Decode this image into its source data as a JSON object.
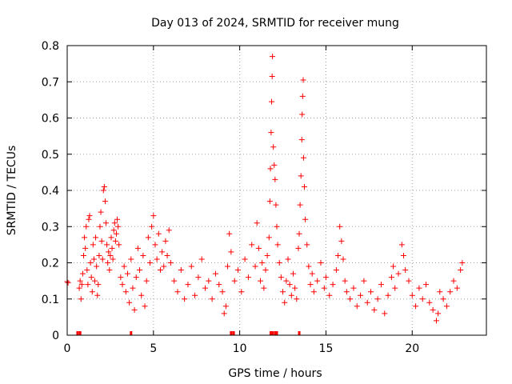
{
  "chart_data": {
    "type": "scatter",
    "title": "Day 013 of 2024, SRMTID for receiver mung",
    "xlabel": "GPS time / hours",
    "ylabel": "SRMTID / TECUs",
    "xlim": [
      0,
      24.3
    ],
    "ylim": [
      0,
      0.8
    ],
    "xticks": [
      0,
      5,
      10,
      15,
      20
    ],
    "xtick_labels": [
      "0",
      "5",
      "10",
      "15",
      "20"
    ],
    "yticks": [
      0,
      0.1,
      0.2,
      0.3,
      0.4,
      0.5,
      0.6,
      0.7,
      0.8
    ],
    "ytick_labels": [
      "0",
      "0.1",
      "0.2",
      "0.3",
      "0.4",
      "0.5",
      "0.6",
      "0.7",
      "0.8"
    ],
    "grid": true,
    "marker": "+",
    "series": [
      {
        "name": "SRMTID",
        "color": "#ff0000",
        "points": [
          [
            0.0,
            0.148
          ],
          [
            0.05,
            0.145
          ],
          [
            0.7,
            0.13
          ],
          [
            0.75,
            0.15
          ],
          [
            0.8,
            0.1
          ],
          [
            0.85,
            0.14
          ],
          [
            0.9,
            0.17
          ],
          [
            0.95,
            0.22
          ],
          [
            1.0,
            0.27
          ],
          [
            1.05,
            0.24
          ],
          [
            1.1,
            0.3
          ],
          [
            1.15,
            0.18
          ],
          [
            1.2,
            0.14
          ],
          [
            1.25,
            0.32
          ],
          [
            1.3,
            0.33
          ],
          [
            1.35,
            0.2
          ],
          [
            1.4,
            0.16
          ],
          [
            1.45,
            0.12
          ],
          [
            1.5,
            0.25
          ],
          [
            1.55,
            0.21
          ],
          [
            1.6,
            0.15
          ],
          [
            1.65,
            0.27
          ],
          [
            1.7,
            0.19
          ],
          [
            1.75,
            0.11
          ],
          [
            1.8,
            0.14
          ],
          [
            1.85,
            0.22
          ],
          [
            1.9,
            0.3
          ],
          [
            1.95,
            0.34
          ],
          [
            2.0,
            0.26
          ],
          [
            2.05,
            0.21
          ],
          [
            2.1,
            0.4
          ],
          [
            2.15,
            0.41
          ],
          [
            2.2,
            0.37
          ],
          [
            2.25,
            0.31
          ],
          [
            2.3,
            0.25
          ],
          [
            2.35,
            0.2
          ],
          [
            2.4,
            0.23
          ],
          [
            2.45,
            0.18
          ],
          [
            2.5,
            0.22
          ],
          [
            2.55,
            0.27
          ],
          [
            2.6,
            0.24
          ],
          [
            2.65,
            0.21
          ],
          [
            2.7,
            0.29
          ],
          [
            2.75,
            0.31
          ],
          [
            2.8,
            0.26
          ],
          [
            2.85,
            0.28
          ],
          [
            2.9,
            0.32
          ],
          [
            2.95,
            0.3
          ],
          [
            3.0,
            0.25
          ],
          [
            3.1,
            0.16
          ],
          [
            3.2,
            0.14
          ],
          [
            3.3,
            0.19
          ],
          [
            3.4,
            0.12
          ],
          [
            3.5,
            0.17
          ],
          [
            3.6,
            0.09
          ],
          [
            3.7,
            0.21
          ],
          [
            3.8,
            0.13
          ],
          [
            3.9,
            0.07
          ],
          [
            4.0,
            0.16
          ],
          [
            4.1,
            0.24
          ],
          [
            4.2,
            0.18
          ],
          [
            4.3,
            0.11
          ],
          [
            4.4,
            0.22
          ],
          [
            4.5,
            0.08
          ],
          [
            4.6,
            0.15
          ],
          [
            4.7,
            0.27
          ],
          [
            4.8,
            0.2
          ],
          [
            4.9,
            0.3
          ],
          [
            5.0,
            0.33
          ],
          [
            5.1,
            0.25
          ],
          [
            5.2,
            0.21
          ],
          [
            5.3,
            0.28
          ],
          [
            5.4,
            0.18
          ],
          [
            5.5,
            0.23
          ],
          [
            5.6,
            0.19
          ],
          [
            5.7,
            0.26
          ],
          [
            5.8,
            0.22
          ],
          [
            5.9,
            0.29
          ],
          [
            6.0,
            0.2
          ],
          [
            6.2,
            0.15
          ],
          [
            6.4,
            0.12
          ],
          [
            6.6,
            0.18
          ],
          [
            6.8,
            0.1
          ],
          [
            7.0,
            0.14
          ],
          [
            7.2,
            0.19
          ],
          [
            7.4,
            0.11
          ],
          [
            7.6,
            0.16
          ],
          [
            7.8,
            0.21
          ],
          [
            8.0,
            0.13
          ],
          [
            8.2,
            0.15
          ],
          [
            8.4,
            0.1
          ],
          [
            8.6,
            0.17
          ],
          [
            8.8,
            0.14
          ],
          [
            9.0,
            0.12
          ],
          [
            9.1,
            0.06
          ],
          [
            9.2,
            0.08
          ],
          [
            9.3,
            0.19
          ],
          [
            9.4,
            0.28
          ],
          [
            9.5,
            0.23
          ],
          [
            9.7,
            0.15
          ],
          [
            9.9,
            0.18
          ],
          [
            10.1,
            0.12
          ],
          [
            10.3,
            0.21
          ],
          [
            10.5,
            0.16
          ],
          [
            10.7,
            0.25
          ],
          [
            10.9,
            0.19
          ],
          [
            11.0,
            0.31
          ],
          [
            11.1,
            0.24
          ],
          [
            11.2,
            0.15
          ],
          [
            11.3,
            0.2
          ],
          [
            11.4,
            0.13
          ],
          [
            11.5,
            0.18
          ],
          [
            11.6,
            0.22
          ],
          [
            11.7,
            0.27
          ],
          [
            11.75,
            0.37
          ],
          [
            11.78,
            0.46
          ],
          [
            11.82,
            0.56
          ],
          [
            11.85,
            0.645
          ],
          [
            11.88,
            0.715
          ],
          [
            11.9,
            0.77
          ],
          [
            11.95,
            0.52
          ],
          [
            12.0,
            0.47
          ],
          [
            12.05,
            0.43
          ],
          [
            12.1,
            0.36
          ],
          [
            12.15,
            0.3
          ],
          [
            12.2,
            0.25
          ],
          [
            12.3,
            0.2
          ],
          [
            12.4,
            0.16
          ],
          [
            12.5,
            0.12
          ],
          [
            12.6,
            0.09
          ],
          [
            12.7,
            0.15
          ],
          [
            12.8,
            0.21
          ],
          [
            12.9,
            0.14
          ],
          [
            13.0,
            0.11
          ],
          [
            13.1,
            0.17
          ],
          [
            13.2,
            0.13
          ],
          [
            13.3,
            0.1
          ],
          [
            13.4,
            0.24
          ],
          [
            13.45,
            0.28
          ],
          [
            13.5,
            0.36
          ],
          [
            13.55,
            0.44
          ],
          [
            13.6,
            0.54
          ],
          [
            13.62,
            0.61
          ],
          [
            13.65,
            0.66
          ],
          [
            13.68,
            0.705
          ],
          [
            13.7,
            0.49
          ],
          [
            13.75,
            0.41
          ],
          [
            13.8,
            0.32
          ],
          [
            13.9,
            0.25
          ],
          [
            14.0,
            0.19
          ],
          [
            14.1,
            0.14
          ],
          [
            14.2,
            0.17
          ],
          [
            14.3,
            0.12
          ],
          [
            14.5,
            0.15
          ],
          [
            14.7,
            0.2
          ],
          [
            14.9,
            0.13
          ],
          [
            15.0,
            0.16
          ],
          [
            15.2,
            0.11
          ],
          [
            15.4,
            0.14
          ],
          [
            15.6,
            0.18
          ],
          [
            15.7,
            0.22
          ],
          [
            15.8,
            0.3
          ],
          [
            15.9,
            0.26
          ],
          [
            16.0,
            0.21
          ],
          [
            16.1,
            0.15
          ],
          [
            16.2,
            0.12
          ],
          [
            16.4,
            0.1
          ],
          [
            16.6,
            0.13
          ],
          [
            16.8,
            0.08
          ],
          [
            17.0,
            0.11
          ],
          [
            17.2,
            0.15
          ],
          [
            17.4,
            0.09
          ],
          [
            17.6,
            0.12
          ],
          [
            17.8,
            0.07
          ],
          [
            18.0,
            0.1
          ],
          [
            18.2,
            0.14
          ],
          [
            18.4,
            0.06
          ],
          [
            18.6,
            0.11
          ],
          [
            18.8,
            0.16
          ],
          [
            18.9,
            0.19
          ],
          [
            19.0,
            0.13
          ],
          [
            19.2,
            0.17
          ],
          [
            19.4,
            0.25
          ],
          [
            19.5,
            0.22
          ],
          [
            19.6,
            0.18
          ],
          [
            19.8,
            0.15
          ],
          [
            20.0,
            0.11
          ],
          [
            20.2,
            0.08
          ],
          [
            20.4,
            0.13
          ],
          [
            20.6,
            0.1
          ],
          [
            20.8,
            0.14
          ],
          [
            21.0,
            0.09
          ],
          [
            21.2,
            0.07
          ],
          [
            21.4,
            0.04
          ],
          [
            21.5,
            0.06
          ],
          [
            21.6,
            0.12
          ],
          [
            21.8,
            0.1
          ],
          [
            22.0,
            0.08
          ],
          [
            22.2,
            0.12
          ],
          [
            22.4,
            0.15
          ],
          [
            22.6,
            0.13
          ],
          [
            22.8,
            0.18
          ],
          [
            22.9,
            0.2
          ]
        ],
        "axis_markers": [
          0.6,
          0.75,
          3.7,
          9.5,
          9.65,
          11.8,
          11.9,
          12.05,
          12.15,
          13.45
        ]
      }
    ]
  }
}
